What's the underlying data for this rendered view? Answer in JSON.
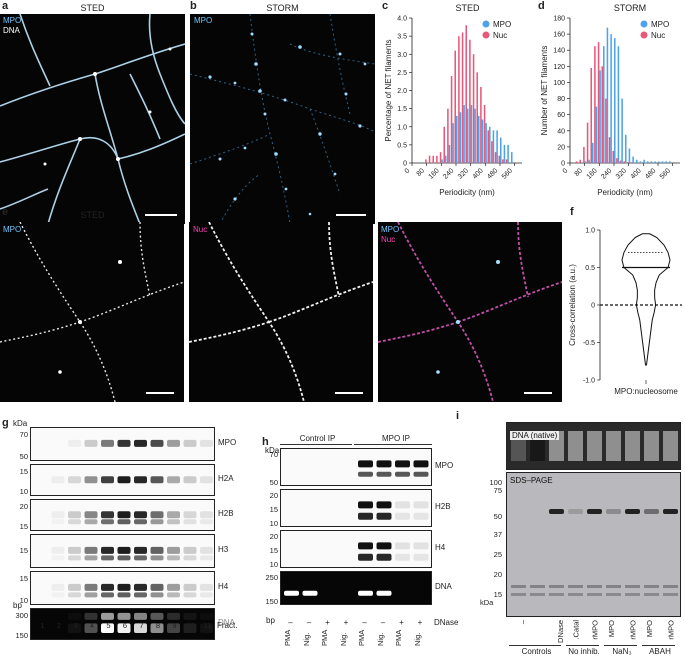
{
  "panels": {
    "a": {
      "letter": "a",
      "title": "STED",
      "ch1": "MPO",
      "ch2": "DNA",
      "ch1_color": "#6fc8ff",
      "ch2_color": "#ffffff"
    },
    "b": {
      "letter": "b",
      "title": "STORM",
      "ch1": "MPO",
      "ch1_color": "#6fc8ff"
    },
    "c": {
      "letter": "c",
      "title": "STED"
    },
    "d": {
      "letter": "d",
      "title": "STORM"
    },
    "e": {
      "letter": "e",
      "title": "STED",
      "labels": [
        "MPO",
        "Nuc",
        "MPO",
        "Nuc"
      ],
      "mpo_color": "#6fc8ff",
      "nuc_color": "#ff3fb4"
    },
    "f": {
      "letter": "f"
    },
    "g": {
      "letter": "g",
      "unit": "kDa",
      "bp": "bp",
      "rows": [
        {
          "name": "MPO",
          "ticks": [
            "70",
            "50"
          ]
        },
        {
          "name": "H2A",
          "ticks": [
            "15",
            "10"
          ]
        },
        {
          "name": "H2B",
          "ticks": [
            "20",
            "15"
          ]
        },
        {
          "name": "H3",
          "ticks": [
            "15"
          ]
        },
        {
          "name": "H4",
          "ticks": [
            "15",
            "10"
          ]
        },
        {
          "name": "DNA",
          "ticks": [
            "300",
            "150"
          ]
        }
      ],
      "lanes": [
        "1",
        "2",
        "3",
        "4",
        "5",
        "6",
        "7",
        "8",
        "9",
        "10",
        "11"
      ],
      "fract": "Fract."
    },
    "h": {
      "letter": "h",
      "unit": "kDa",
      "bp": "bp",
      "control": "Control IP",
      "mpo_ip": "MPO IP",
      "rows": [
        {
          "name": "MPO",
          "ticks": [
            "70",
            "50"
          ]
        },
        {
          "name": "H2B",
          "ticks": [
            "20",
            "15",
            "10"
          ]
        },
        {
          "name": "H4",
          "ticks": [
            "20",
            "15",
            "10"
          ]
        },
        {
          "name": "DNA",
          "ticks": [
            "250",
            "150"
          ]
        }
      ],
      "dnase_row": [
        "–",
        "–",
        "+",
        "+",
        "–",
        "–",
        "+",
        "+"
      ],
      "dnase": "DNase",
      "lanes": [
        "PMA",
        "Nig.",
        "PMA",
        "Nig.",
        "PMA",
        "Nig.",
        "PMA",
        "Nig."
      ]
    },
    "i": {
      "letter": "i",
      "native": "DNA (native)",
      "sds": "SDS–PAGE",
      "unit": "kDa",
      "ticks": [
        "100",
        "75",
        "50",
        "37",
        "25",
        "20",
        "15"
      ],
      "lanes": [
        "–",
        "DNase",
        "Catal.",
        "rMPO",
        "MPO",
        "rMPO",
        "MPO",
        "rMPO",
        "MPO"
      ],
      "groups": [
        "Controls",
        "No inhib.",
        "NaN₃",
        "ABAH"
      ]
    }
  },
  "chart_data": [
    {
      "type": "bar",
      "title": "STED",
      "xlabel": "Periodicity (nm)",
      "ylabel": "Percentage of NET filaments",
      "ylim": [
        0,
        4
      ],
      "yticks": [
        "0",
        "0.5",
        "1.0",
        "1.5",
        "2.0",
        "2.5",
        "3.0",
        "3.5",
        "4.0"
      ],
      "xticks": [
        "0",
        "80",
        "160",
        "240",
        "320",
        "400",
        "480",
        "560"
      ],
      "xlim": [
        0,
        600
      ],
      "legend": "top-right",
      "series": [
        {
          "name": "MPO",
          "color": "#4ea3e8",
          "x": [
            160,
            180,
            200,
            220,
            240,
            260,
            280,
            300,
            320,
            340,
            360,
            380,
            400,
            420,
            440,
            460,
            480,
            500,
            520,
            540
          ],
          "values": [
            0.1,
            0.2,
            0.5,
            1.1,
            1.3,
            1.4,
            1.6,
            1.5,
            1.6,
            1.5,
            1.3,
            1.2,
            1.1,
            1.0,
            0.9,
            0.9,
            0.7,
            0.5,
            0.5,
            0.3
          ]
        },
        {
          "name": "Nuc",
          "color": "#e8587a",
          "x": [
            80,
            100,
            120,
            140,
            160,
            180,
            200,
            220,
            240,
            260,
            280,
            300,
            320,
            340,
            360,
            380,
            400,
            420,
            440,
            460,
            480,
            500,
            520
          ],
          "values": [
            0.1,
            0.2,
            0.2,
            0.2,
            0.3,
            1.0,
            1.5,
            2.4,
            3.1,
            3.5,
            3.6,
            3.8,
            3.4,
            3.0,
            2.5,
            2.1,
            1.6,
            0.9,
            0.6,
            0.3,
            0.2,
            0.1,
            0.1
          ]
        }
      ]
    },
    {
      "type": "bar",
      "title": "STORM",
      "xlabel": "Periodicity (nm)",
      "ylabel": "Number of NET filaments",
      "ylim": [
        0,
        180
      ],
      "yticks": [
        "0",
        "20",
        "40",
        "60",
        "80",
        "100",
        "120",
        "140",
        "160",
        "180"
      ],
      "xticks": [
        "0",
        "80",
        "160",
        "240",
        "320",
        "400",
        "480",
        "560"
      ],
      "xlim": [
        0,
        600
      ],
      "legend": "top-right",
      "series": [
        {
          "name": "MPO",
          "color": "#4ea3e8",
          "x": [
            80,
            100,
            120,
            140,
            160,
            180,
            200,
            220,
            240,
            260,
            280,
            300,
            320,
            340,
            360,
            380,
            400,
            420,
            440,
            460,
            480,
            500,
            520,
            540
          ],
          "values": [
            2,
            4,
            25,
            70,
            115,
            145,
            168,
            160,
            155,
            145,
            80,
            35,
            18,
            8,
            4,
            2,
            4,
            2,
            2,
            2,
            2,
            2,
            2,
            2
          ]
        },
        {
          "name": "Nuc",
          "color": "#e8587a",
          "x": [
            40,
            60,
            80,
            100,
            120,
            140,
            160,
            180,
            200,
            220,
            240,
            260,
            280,
            300,
            320,
            340
          ],
          "values": [
            2,
            4,
            20,
            50,
            118,
            145,
            150,
            120,
            80,
            32,
            15,
            6,
            3,
            2,
            1,
            1
          ]
        }
      ]
    },
    {
      "type": "area",
      "title": "",
      "xlabel": "MPO:nucleosome",
      "ylabel": "Cross-correlation (a.u.)",
      "ylim": [
        -1.0,
        1.0
      ],
      "yticks": [
        "-1.0",
        "-0.5",
        "0",
        "0.5",
        "1.0"
      ],
      "median": 0.5,
      "q1": 0.03,
      "q3": 0.7,
      "profile_y": [
        0.95,
        0.9,
        0.8,
        0.7,
        0.6,
        0.5,
        0.4,
        0.3,
        0.2,
        0.1,
        0.0,
        -0.1,
        -0.2,
        -0.3,
        -0.4,
        -0.5,
        -0.6,
        -0.7,
        -0.8
      ],
      "profile_w": [
        0.15,
        0.45,
        0.75,
        0.92,
        1.0,
        0.92,
        0.55,
        0.42,
        0.36,
        0.36,
        0.4,
        0.34,
        0.26,
        0.22,
        0.18,
        0.14,
        0.1,
        0.06,
        0.02
      ]
    }
  ]
}
